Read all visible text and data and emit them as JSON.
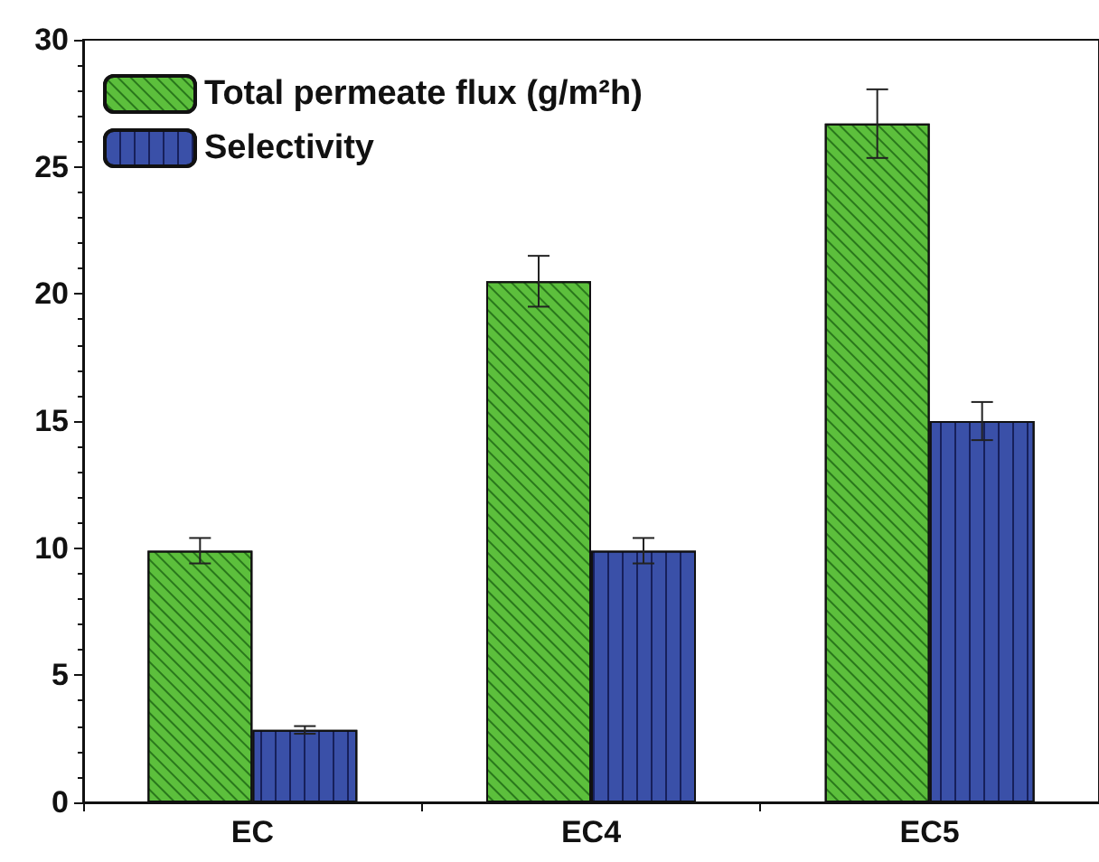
{
  "chart_data": {
    "type": "bar",
    "categories": [
      "EC",
      "EC4",
      "EC5"
    ],
    "series": [
      {
        "name": "Total permeate flux (g/m²h)",
        "color": "#5cbf3c",
        "values": [
          9.9,
          20.5,
          26.7
        ],
        "errors": [
          0.5,
          1.0,
          1.35
        ]
      },
      {
        "name": "Selectivity",
        "color": "#3a50a8",
        "values": [
          2.85,
          9.9,
          15.0
        ],
        "errors": [
          0.15,
          0.5,
          0.75
        ]
      }
    ],
    "ylim": [
      0,
      30
    ],
    "yticks": [
      0,
      5,
      10,
      15,
      20,
      25,
      30
    ],
    "grid": false,
    "legend": "top left"
  }
}
